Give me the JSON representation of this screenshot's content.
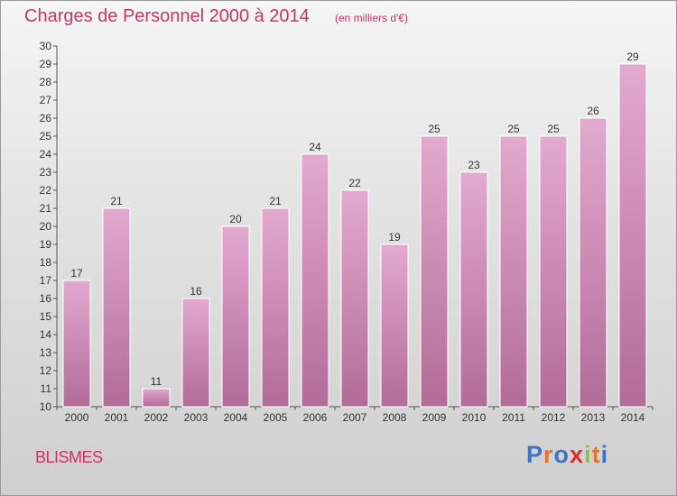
{
  "header": {
    "title": "Charges de Personnel 2000 à 2014",
    "subtitle": "(en milliers d'€)"
  },
  "footer": {
    "commune": "BLISMES",
    "logo_letters": [
      "P",
      "r",
      "o",
      "x",
      "i",
      "t",
      "i"
    ]
  },
  "colors": {
    "title": "#cc3366",
    "bar_top": "#e3a9cf",
    "bar_bottom": "#b16c97",
    "axis": "#555555",
    "logo": [
      "#3a74c8",
      "#e8732a",
      "#3a74c8",
      "#dd2c2c",
      "#8bc34a",
      "#e8732a",
      "#3a74c8"
    ]
  },
  "chart_data": {
    "type": "bar",
    "categories": [
      "2000",
      "2001",
      "2002",
      "2003",
      "2004",
      "2005",
      "2006",
      "2007",
      "2008",
      "2009",
      "2010",
      "2011",
      "2012",
      "2013",
      "2014"
    ],
    "values": [
      17,
      21,
      11,
      16,
      20,
      21,
      24,
      22,
      19,
      25,
      23,
      25,
      25,
      26,
      29
    ],
    "ylim": [
      10,
      30
    ],
    "yticks": [
      10,
      11,
      12,
      13,
      14,
      15,
      16,
      17,
      18,
      19,
      20,
      21,
      22,
      23,
      24,
      25,
      26,
      27,
      28,
      29,
      30
    ],
    "grid": false,
    "data_labels": true
  }
}
